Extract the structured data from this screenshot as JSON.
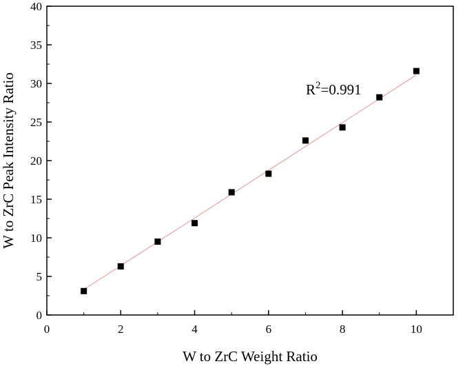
{
  "chart_data": {
    "type": "scatter",
    "xlabel": "W to ZrC Weight Ratio",
    "ylabel": "W to ZrC Peak Intensity Ratio",
    "xlim": [
      0,
      11
    ],
    "ylim": [
      0,
      40
    ],
    "x_ticks": [
      0,
      2,
      4,
      6,
      8,
      10
    ],
    "y_ticks": [
      0,
      5,
      10,
      15,
      20,
      25,
      30,
      35,
      40
    ],
    "series": [
      {
        "x": [
          1,
          2,
          3,
          4,
          5,
          6,
          7,
          8,
          9,
          10
        ],
        "y": [
          3.1,
          6.3,
          9.5,
          11.9,
          15.9,
          18.3,
          22.6,
          24.3,
          28.2,
          31.6
        ],
        "marker": "square",
        "color": "#000000"
      }
    ],
    "fit_line": {
      "type": "linear",
      "color": "#e8948c",
      "x": [
        1,
        10
      ],
      "y": [
        3.3,
        31.1
      ]
    },
    "annotation": {
      "base": "R",
      "sup": "2",
      "rest": "=0.991"
    },
    "grid": false
  }
}
